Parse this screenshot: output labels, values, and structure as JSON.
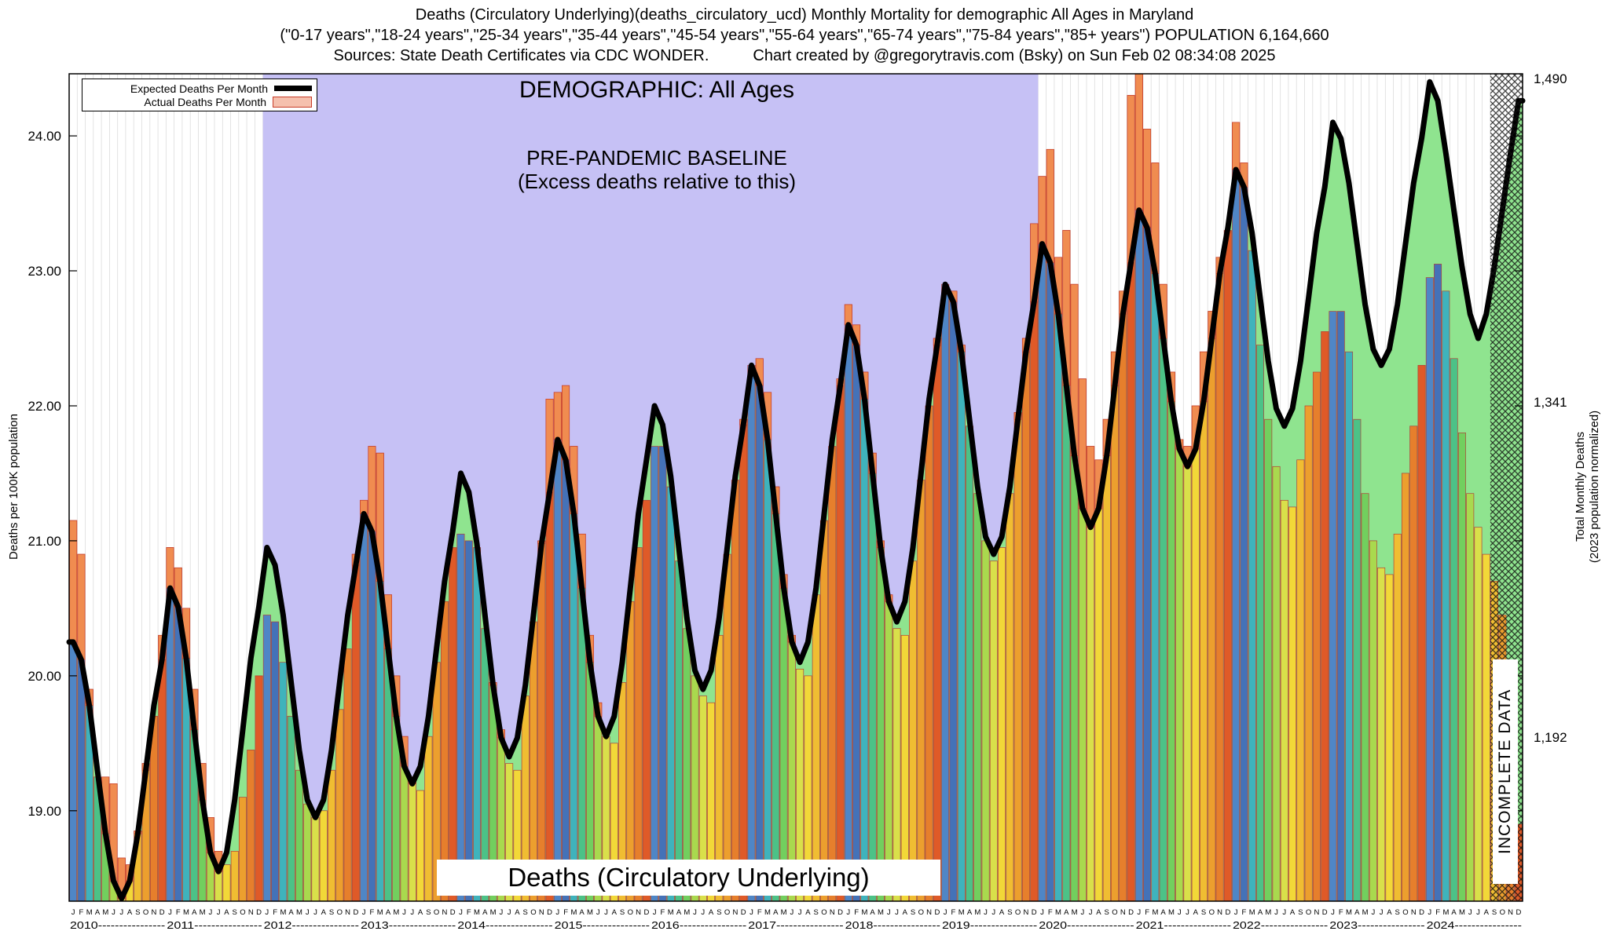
{
  "header": {
    "title_line1": "Deaths (Circulatory Underlying)(deaths_circulatory_ucd) Monthly Mortality for demographic All Ages in Maryland",
    "title_line2": "(\"0-17 years\",\"18-24 years\",\"25-34 years\",\"35-44 years\",\"45-54 years\",\"55-64 years\",\"65-74 years\",\"75-84 years\",\"85+ years\") POPULATION 6,164,660",
    "title_line3_left": "Sources: State Death Certificates via CDC WONDER.",
    "title_line3_right": "Chart created by @gregorytravis.com (Bsky) on Sun Feb 02 08:34:08 2025"
  },
  "legend": {
    "expected_label": "Expected Deaths Per Month",
    "actual_label": "Actual Deaths Per Month"
  },
  "annotations": {
    "demographic": "DEMOGRAPHIC: All Ages",
    "baseline_line1": "PRE-PANDEMIC BASELINE",
    "baseline_line2": "(Excess deaths relative to this)",
    "bottom_label": "Deaths (Circulatory Underlying)",
    "incomplete_label": "INCOMPLETE DATA"
  },
  "axes": {
    "left_label": "Deaths per 100K population",
    "right_label_line1": "Total Monthly Deaths",
    "right_label_line2": "(2023 population normalized)",
    "left_ticks": [
      "19.00",
      "20.00",
      "21.00",
      "22.00",
      "23.00",
      "24.00"
    ],
    "right_ticks": [
      "1,490",
      "1,341",
      "1,192"
    ]
  },
  "chart_data": {
    "type": "bar",
    "title": "Deaths (Circulatory Underlying) Monthly Mortality, All Ages, Maryland",
    "ylabel": "Deaths per 100K population",
    "y2label": "Total Monthly Deaths (2023 population normalized)",
    "ylim": [
      18.33,
      24.46
    ],
    "grid": true,
    "legend_position": "top-left",
    "months": [
      "J",
      "F",
      "M",
      "A",
      "M",
      "J",
      "J",
      "A",
      "S",
      "O",
      "N",
      "D"
    ],
    "years": [
      2010,
      2011,
      2012,
      2013,
      2014,
      2015,
      2016,
      2017,
      2018,
      2019,
      2020,
      2021,
      2022,
      2023,
      2024
    ],
    "series": [
      {
        "name": "Actual Deaths Per Month",
        "values": [
          21.15,
          20.9,
          19.9,
          19.25,
          19.25,
          19.2,
          18.65,
          18.6,
          18.85,
          19.35,
          19.7,
          20.3,
          20.95,
          20.8,
          20.5,
          19.9,
          19.35,
          18.95,
          18.7,
          18.6,
          18.7,
          19.1,
          19.45,
          20.0,
          20.45,
          20.4,
          20.1,
          19.7,
          19.3,
          19.05,
          18.95,
          19.0,
          19.3,
          19.75,
          20.2,
          20.9,
          21.3,
          21.7,
          21.65,
          20.6,
          20.0,
          19.55,
          19.25,
          19.15,
          19.55,
          20.1,
          20.55,
          20.95,
          21.05,
          21.0,
          20.95,
          20.35,
          19.95,
          19.6,
          19.35,
          19.3,
          19.85,
          20.4,
          21.0,
          22.05,
          22.1,
          22.15,
          21.7,
          21.05,
          20.3,
          19.8,
          19.55,
          19.5,
          19.95,
          20.55,
          20.95,
          21.3,
          21.7,
          21.7,
          21.4,
          20.85,
          20.35,
          20.0,
          19.85,
          19.8,
          20.3,
          20.9,
          21.45,
          21.9,
          22.3,
          22.35,
          22.1,
          21.4,
          20.75,
          20.3,
          20.05,
          20.0,
          20.6,
          21.15,
          21.7,
          22.2,
          22.75,
          22.6,
          22.25,
          21.65,
          21.0,
          20.6,
          20.35,
          20.3,
          20.85,
          21.45,
          22.0,
          22.5,
          22.9,
          22.85,
          22.45,
          21.85,
          21.35,
          21.0,
          20.85,
          20.95,
          21.35,
          21.95,
          22.5,
          23.35,
          23.7,
          23.9,
          23.1,
          23.3,
          22.9,
          22.2,
          21.7,
          21.6,
          21.9,
          22.4,
          22.85,
          24.3,
          24.55,
          24.05,
          23.8,
          22.9,
          22.25,
          21.75,
          21.7,
          22.0,
          22.4,
          22.7,
          23.1,
          23.3,
          24.1,
          23.8,
          23.15,
          22.45,
          21.9,
          21.55,
          21.3,
          21.25,
          21.6,
          22.0,
          22.25,
          22.55,
          22.7,
          22.7,
          22.4,
          21.9,
          21.35,
          21.0,
          20.8,
          20.75,
          21.05,
          21.5,
          21.85,
          22.3,
          22.95,
          23.05,
          22.85,
          22.35,
          21.8,
          21.35,
          21.1,
          20.9,
          20.7,
          20.45,
          19.6,
          18.9
        ]
      },
      {
        "name": "Expected Deaths Per Month",
        "values": [
          20.25,
          20.12,
          19.78,
          19.3,
          18.83,
          18.48,
          18.35,
          18.48,
          18.83,
          19.3,
          19.78,
          20.12,
          20.65,
          20.51,
          20.13,
          19.6,
          19.08,
          18.69,
          18.55,
          18.69,
          19.08,
          19.6,
          20.13,
          20.51,
          20.95,
          20.82,
          20.45,
          19.95,
          19.45,
          19.08,
          18.95,
          19.08,
          19.45,
          19.95,
          20.45,
          20.82,
          21.2,
          21.07,
          20.7,
          20.2,
          19.7,
          19.33,
          19.2,
          19.33,
          19.7,
          20.2,
          20.7,
          21.07,
          21.5,
          21.36,
          20.98,
          20.45,
          19.93,
          19.54,
          19.4,
          19.54,
          19.93,
          20.45,
          20.98,
          21.36,
          21.75,
          21.6,
          21.2,
          20.65,
          20.1,
          19.7,
          19.55,
          19.7,
          20.1,
          20.65,
          21.2,
          21.6,
          22.0,
          21.86,
          21.48,
          20.95,
          20.43,
          20.04,
          19.9,
          20.04,
          20.43,
          20.95,
          21.48,
          21.86,
          22.3,
          22.15,
          21.75,
          21.2,
          20.65,
          20.25,
          20.1,
          20.25,
          20.65,
          21.2,
          21.75,
          22.15,
          22.6,
          22.45,
          22.05,
          21.5,
          20.95,
          20.55,
          20.4,
          20.55,
          20.95,
          21.5,
          22.05,
          22.45,
          22.9,
          22.77,
          22.4,
          21.9,
          21.4,
          21.03,
          20.9,
          21.03,
          21.4,
          21.9,
          22.4,
          22.77,
          23.2,
          23.06,
          22.68,
          22.15,
          21.63,
          21.24,
          21.1,
          21.24,
          21.63,
          22.15,
          22.68,
          23.06,
          23.45,
          23.32,
          22.98,
          22.5,
          22.03,
          21.68,
          21.55,
          21.68,
          22.03,
          22.5,
          22.98,
          23.32,
          23.75,
          23.62,
          23.28,
          22.8,
          22.33,
          21.98,
          21.85,
          21.98,
          22.33,
          22.8,
          23.28,
          23.62,
          24.1,
          23.98,
          23.65,
          23.2,
          22.75,
          22.42,
          22.3,
          22.42,
          22.75,
          23.2,
          23.65,
          23.98,
          24.4,
          24.26,
          23.87,
          23.45,
          23.03,
          22.68,
          22.5,
          22.68,
          23.03,
          23.45,
          23.87,
          24.26
        ]
      }
    ],
    "baseline_region": {
      "label": "PRE-PANDEMIC BASELINE",
      "start": "2012-01",
      "end": "2019-12",
      "start_index": 24,
      "end_index": 120
    },
    "incomplete_region": {
      "label": "INCOMPLETE DATA",
      "start": "2024-09",
      "end": "2024-12",
      "start_index": 176
    },
    "month_colors": [
      "#4f86c6",
      "#4472b8",
      "#3fb3bc",
      "#4cc287",
      "#72cf5e",
      "#a9d94e",
      "#d9e04a",
      "#f2d838",
      "#f0bd32",
      "#ec9f2e",
      "#e67f2c",
      "#df5a28"
    ],
    "colors": {
      "expected_line": "#000000",
      "excess": "#f08c50",
      "excess_stroke": "#c83c28",
      "deficit": "#8fe48f",
      "baseline_bg": "#c6c1f5",
      "bar_stroke": "#b04038",
      "grid": "#dcdcdc",
      "legend_swatch": "#f5c0ae"
    }
  }
}
